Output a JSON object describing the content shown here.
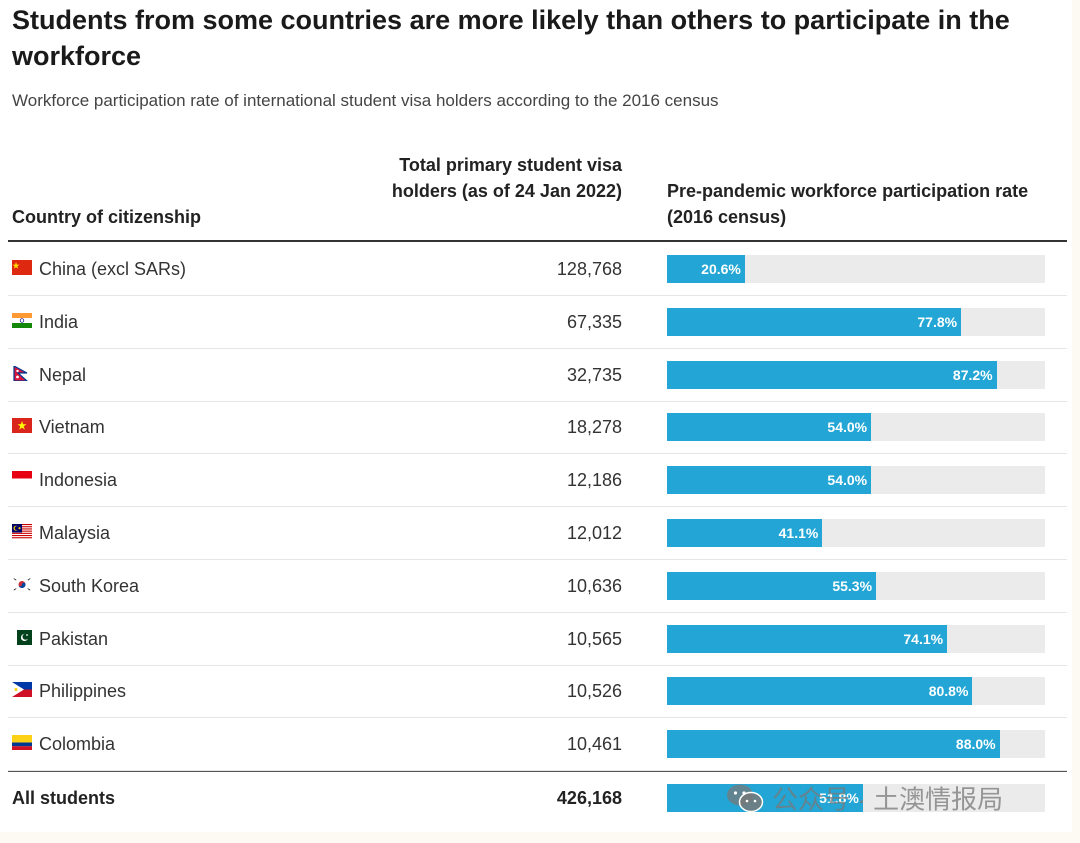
{
  "title": "Students from some countries are more likely than others to participate in the workforce",
  "subtitle": "Workforce participation rate of international student visa holders according to the 2016 census",
  "columns": {
    "country": "Country of citizenship",
    "total": "Total primary student visa holders (as of 24 Jan 2022)",
    "rate": "Pre-pandemic workforce participation rate (2016 census)"
  },
  "chart_data": {
    "type": "bar",
    "orientation": "horizontal",
    "xlim": [
      0,
      100
    ],
    "categories": [
      "China (excl SARs)",
      "India",
      "Nepal",
      "Vietnam",
      "Indonesia",
      "Malaysia",
      "South Korea",
      "Pakistan",
      "Philippines",
      "Colombia",
      "All students"
    ],
    "visa_holders": [
      "128,768",
      "67,335",
      "32,735",
      "18,278",
      "12,186",
      "12,012",
      "10,636",
      "10,565",
      "10,526",
      "10,461",
      "426,168"
    ],
    "values": [
      20.6,
      77.8,
      87.2,
      54.0,
      54.0,
      41.1,
      55.3,
      74.1,
      80.8,
      88.0,
      51.8
    ],
    "labels": [
      "20.6%",
      "77.8%",
      "87.2%",
      "54.0%",
      "54.0%",
      "41.1%",
      "55.3%",
      "74.1%",
      "80.8%",
      "88.0%",
      "51.8%"
    ],
    "flags": [
      "china-flag-icon",
      "india-flag-icon",
      "nepal-flag-icon",
      "vietnam-flag-icon",
      "indonesia-flag-icon",
      "malaysia-flag-icon",
      "south-korea-flag-icon",
      "pakistan-flag-icon",
      "philippines-flag-icon",
      "colombia-flag-icon",
      ""
    ],
    "bar_color": "#23a6d5",
    "track_color": "#ebebeb"
  },
  "watermark": {
    "text": "公众号 · 土澳情报局",
    "icon": "wechat-icon"
  }
}
